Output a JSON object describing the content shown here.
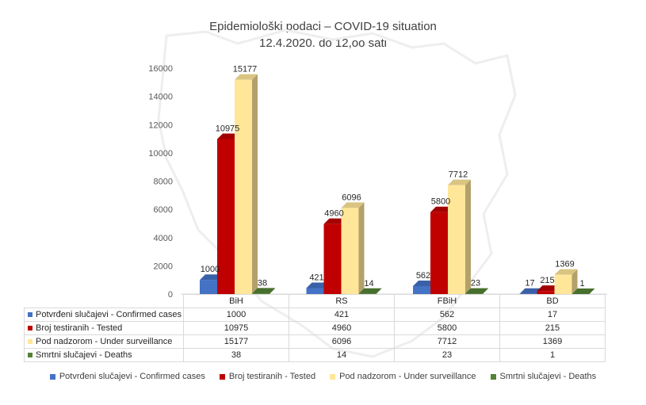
{
  "chart_data": {
    "type": "bar",
    "title": "Epidemiološki podaci – COVID-19 situation",
    "subtitle": "12.4.2020. do 12,oo sati",
    "categories": [
      "BiH",
      "RS",
      "FBiH",
      "BD"
    ],
    "ylim": [
      0,
      16000
    ],
    "yticks": [
      0,
      2000,
      4000,
      6000,
      8000,
      10000,
      12000,
      14000,
      16000
    ],
    "grid": false,
    "legend_position": "bottom",
    "series": [
      {
        "name": "Potvrđeni slučajevi - Confirmed cases",
        "color": "#4472C4",
        "values": [
          1000,
          421,
          562,
          17
        ]
      },
      {
        "name": "Broj testiranih - Tested",
        "color": "#C00000",
        "values": [
          10975,
          4960,
          5800,
          215
        ]
      },
      {
        "name": "Pod nadzorom - Under surveillance",
        "color": "#FFE699",
        "values": [
          15177,
          6096,
          7712,
          1369
        ]
      },
      {
        "name": "Smrtni slučajevi - Deaths",
        "color": "#548235",
        "values": [
          38,
          14,
          23,
          1
        ]
      }
    ]
  }
}
